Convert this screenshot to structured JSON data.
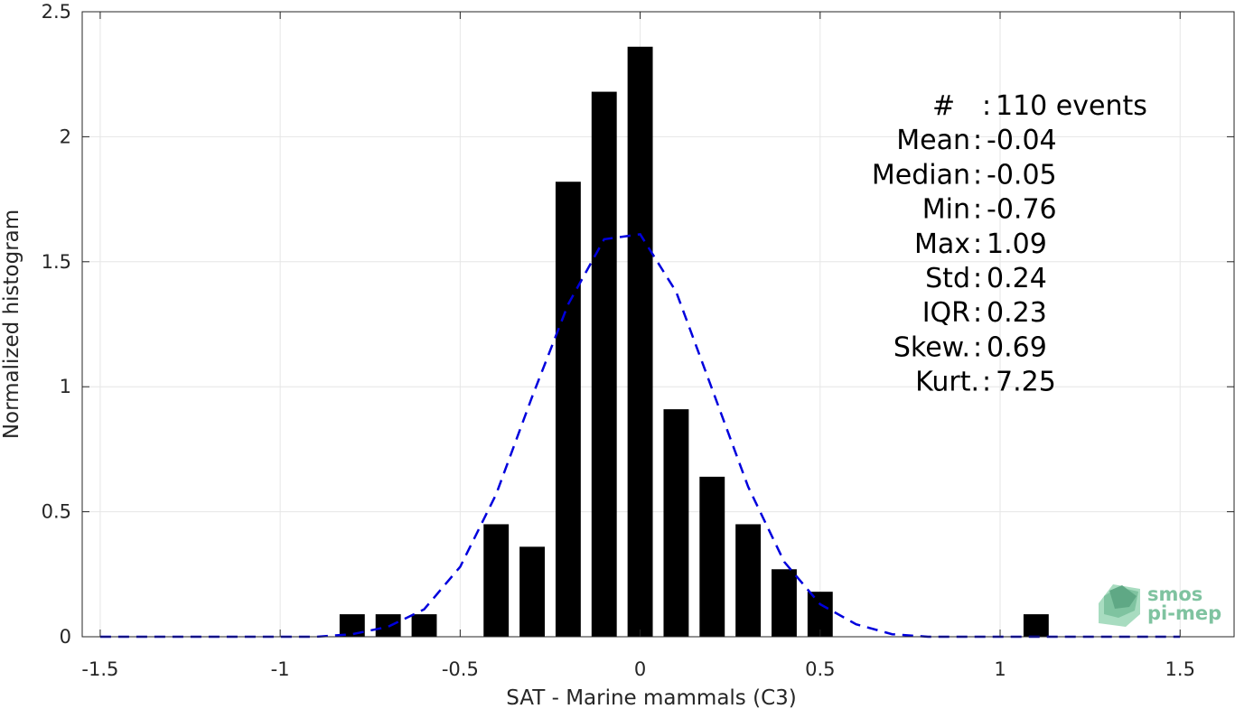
{
  "chart_data": {
    "type": "bar",
    "xlabel": "SAT - Marine mammals (C3)",
    "ylabel": "Normalized histogram",
    "xlim": [
      -1.55,
      1.65
    ],
    "ylim": [
      0,
      2.5
    ],
    "x_ticks": [
      -1.5,
      -1,
      -0.5,
      0,
      0.5,
      1,
      1.5
    ],
    "x_tick_labels": [
      "-1.5",
      "-1",
      "-0.5",
      "0",
      "0.5",
      "1",
      "1.5"
    ],
    "y_ticks": [
      0,
      0.5,
      1,
      1.5,
      2,
      2.5
    ],
    "y_tick_labels": [
      "0",
      "0.5",
      "1",
      "1.5",
      "2",
      "2.5"
    ],
    "grid": true,
    "bin_width": 0.1,
    "bar_color": "#000000",
    "bars": [
      {
        "x": -0.8,
        "y": 0.09
      },
      {
        "x": -0.7,
        "y": 0.09
      },
      {
        "x": -0.6,
        "y": 0.09
      },
      {
        "x": -0.4,
        "y": 0.45
      },
      {
        "x": -0.3,
        "y": 0.36
      },
      {
        "x": -0.2,
        "y": 1.82
      },
      {
        "x": -0.1,
        "y": 2.18
      },
      {
        "x": 0.0,
        "y": 2.36
      },
      {
        "x": 0.1,
        "y": 0.91
      },
      {
        "x": 0.2,
        "y": 0.64
      },
      {
        "x": 0.3,
        "y": 0.45
      },
      {
        "x": 0.4,
        "y": 0.27
      },
      {
        "x": 0.5,
        "y": 0.18
      },
      {
        "x": 1.1,
        "y": 0.09
      }
    ],
    "fit_curve": {
      "style": "dashed",
      "color": "#0000dd",
      "points": [
        [
          -1.5,
          0.0
        ],
        [
          -1.4,
          0.0
        ],
        [
          -1.3,
          0.0
        ],
        [
          -1.2,
          0.0
        ],
        [
          -1.1,
          0.0
        ],
        [
          -1.0,
          0.0
        ],
        [
          -0.9,
          0.0
        ],
        [
          -0.8,
          0.01
        ],
        [
          -0.7,
          0.04
        ],
        [
          -0.6,
          0.11
        ],
        [
          -0.5,
          0.28
        ],
        [
          -0.4,
          0.57
        ],
        [
          -0.3,
          0.96
        ],
        [
          -0.2,
          1.33
        ],
        [
          -0.1,
          1.59
        ],
        [
          0.0,
          1.61
        ],
        [
          0.1,
          1.38
        ],
        [
          0.2,
          0.99
        ],
        [
          0.3,
          0.6
        ],
        [
          0.4,
          0.3
        ],
        [
          0.5,
          0.13
        ],
        [
          0.6,
          0.05
        ],
        [
          0.7,
          0.01
        ],
        [
          0.8,
          0.0
        ],
        [
          0.9,
          0.0
        ],
        [
          1.0,
          0.0
        ],
        [
          1.1,
          0.0
        ],
        [
          1.2,
          0.0
        ],
        [
          1.3,
          0.0
        ],
        [
          1.4,
          0.0
        ],
        [
          1.5,
          0.0
        ]
      ]
    },
    "stats": [
      {
        "label": "#  ",
        "value": "110 events"
      },
      {
        "label": "Mean",
        "value": "-0.04"
      },
      {
        "label": "Median",
        "value": "-0.05"
      },
      {
        "label": "Min",
        "value": "-0.76"
      },
      {
        "label": "Max",
        "value": "1.09"
      },
      {
        "label": "Std",
        "value": "0.24"
      },
      {
        "label": "IQR",
        "value": "0.23"
      },
      {
        "label": "Skew.",
        "value": "0.69"
      },
      {
        "label": "Kurt.",
        "value": "7.25"
      }
    ]
  },
  "logo": {
    "line1": "smos",
    "line2": "pi-mep",
    "color": "#7fc3a0"
  }
}
